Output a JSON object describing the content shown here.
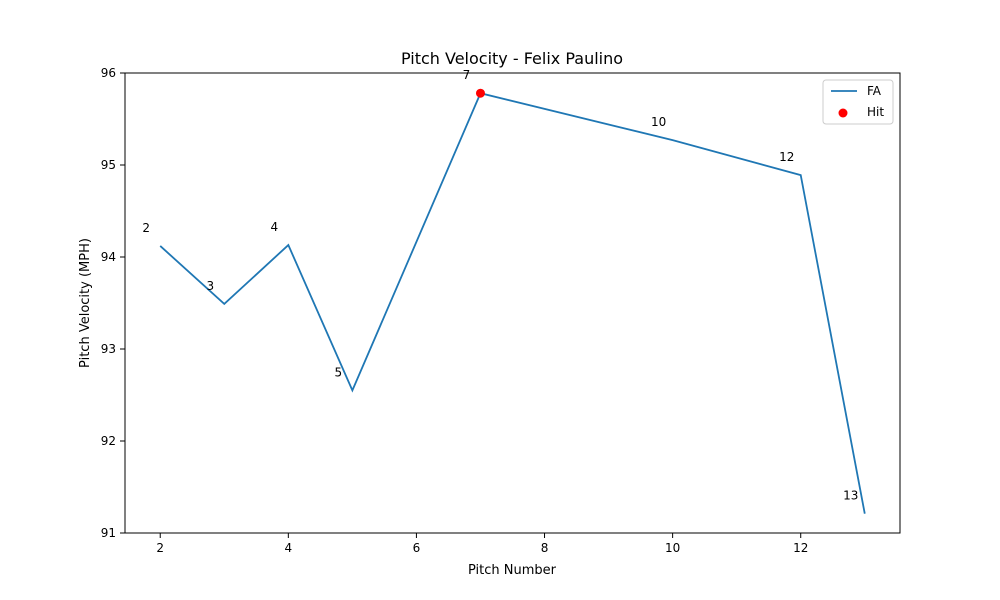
{
  "chart_data": {
    "type": "line",
    "title": "Pitch Velocity - Felix Paulino",
    "xlabel": "Pitch Number",
    "ylabel": "Pitch Velocity (MPH)",
    "xlim": [
      1.45,
      13.55
    ],
    "ylim": [
      91,
      96
    ],
    "xticks": [
      2,
      4,
      6,
      8,
      10,
      12
    ],
    "yticks": [
      91,
      92,
      93,
      94,
      95,
      96
    ],
    "series": [
      {
        "name": "FA",
        "color": "#1f77b4",
        "x": [
          2,
          3,
          4,
          5,
          7,
          10,
          12,
          13
        ],
        "y": [
          94.12,
          93.49,
          94.13,
          92.55,
          95.78,
          95.27,
          94.89,
          91.21
        ]
      }
    ],
    "point_labels": [
      "2",
      "3",
      "4",
      "5",
      "7",
      "10",
      "12",
      "13"
    ],
    "hits": {
      "name": "Hit",
      "color": "#ff0000",
      "x": [
        7
      ],
      "y": [
        95.78
      ]
    },
    "legend_position": "upper right",
    "grid": false
  }
}
